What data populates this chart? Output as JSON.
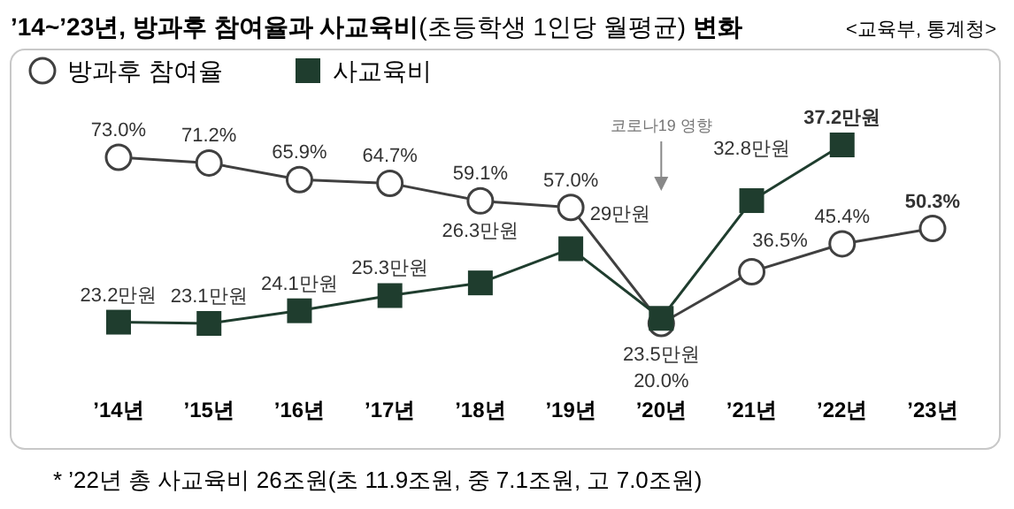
{
  "chart_data": {
    "type": "line",
    "title": "**’14~’23년, 방과후 참여율과 사교육비**(초등학생 1인당 월평균) **변화**",
    "subtitle": "<교육부, 통계청>",
    "categories": [
      "’14년",
      "’15년",
      "’16년",
      "’17년",
      "’18년",
      "’19년",
      "’20년",
      "’21년",
      "’22년",
      "’23년"
    ],
    "series": [
      {
        "name": "방과후 참여율",
        "color": "#404040",
        "marker": "circle",
        "values": [
          73.0,
          71.2,
          65.9,
          64.7,
          59.1,
          57.0,
          20.0,
          36.5,
          45.4,
          50.3
        ],
        "value_labels": [
          "73.0%",
          "71.2%",
          "65.9%",
          "64.7%",
          "59.1%",
          "57.0%",
          "20.0%",
          "36.5%",
          "45.4%",
          "**50.3%**"
        ]
      },
      {
        "name": "사교육비",
        "color": "#1f3d2e",
        "marker": "square",
        "axis": "y2",
        "values": [
          23.2,
          23.1,
          24.1,
          25.3,
          26.3,
          29,
          23.5,
          32.8,
          37.2,
          null
        ],
        "value_labels": [
          "23.2만원",
          "23.1만원",
          "24.1만원",
          "25.3만원",
          "26.3만원",
          "29만원",
          "23.5만원",
          "32.8만원",
          "**37.2만원**",
          null
        ]
      }
    ],
    "tick_labels": "x",
    "legend": "top left",
    "annotations": [
      {
        "text": "코로나19 영향",
        "x": "’20년"
      },
      "* ’22년 총 사교육비 26조원(초 11.9조원, 중 7.1조원, 고 7.0조원)"
    ]
  }
}
